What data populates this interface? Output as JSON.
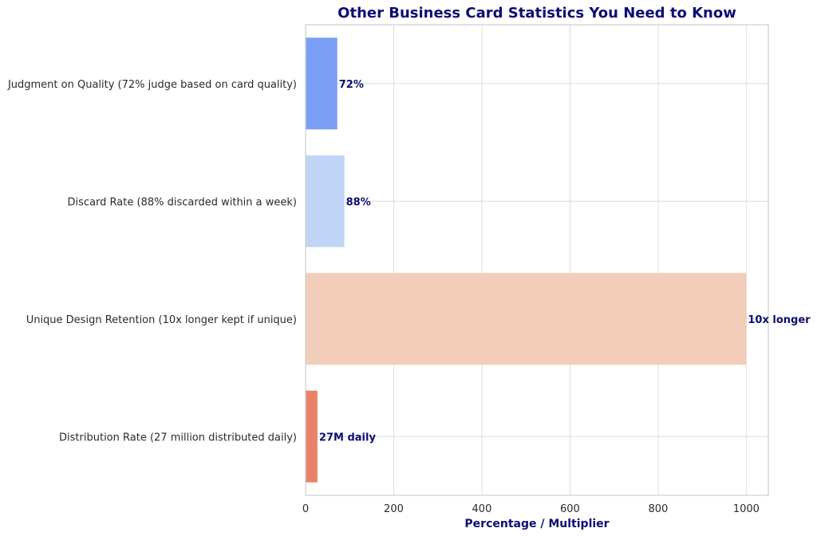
{
  "chart_data": {
    "type": "bar",
    "orientation": "horizontal",
    "title": "Other Business Card Statistics You Need to Know",
    "xlabel": "Percentage / Multiplier",
    "ylabel": "",
    "xlim": [
      0,
      1050
    ],
    "xticks": [
      0,
      200,
      400,
      600,
      800,
      1000
    ],
    "grid": true,
    "categories": [
      "Judgment on Quality (72% judge based on card quality)",
      "Discard Rate (88% discarded within a week)",
      "Unique Design Retention (10x longer kept if unique)",
      "Distribution Rate (27 million distributed daily)"
    ],
    "values": [
      72,
      88,
      1000,
      27
    ],
    "data_labels": [
      "72%",
      "88%",
      "10x longer",
      "27M daily"
    ],
    "colors": [
      "#7b9ff5",
      "#c0d4f5",
      "#f2cdb9",
      "#e8836a"
    ]
  }
}
